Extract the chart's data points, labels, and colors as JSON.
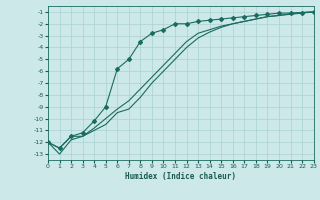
{
  "xlabel": "Humidex (Indice chaleur)",
  "xlim": [
    0,
    23
  ],
  "ylim": [
    -13.5,
    -0.5
  ],
  "bg_color": "#cce8e8",
  "grid_color": "#aad0d0",
  "line_color": "#1a6b60",
  "line1_x": [
    0,
    1,
    2,
    3,
    4,
    5,
    6,
    7,
    8,
    9,
    10,
    11,
    12,
    13,
    14,
    15,
    16,
    17,
    18,
    19,
    20,
    21,
    22,
    23
  ],
  "line1_y": [
    -12,
    -12.5,
    -11.5,
    -11.2,
    -10.2,
    -9.0,
    -5.8,
    -5.0,
    -3.5,
    -2.8,
    -2.5,
    -2.0,
    -2.0,
    -1.8,
    -1.7,
    -1.6,
    -1.5,
    -1.4,
    -1.3,
    -1.2,
    -1.1,
    -1.1,
    -1.05,
    -1.0
  ],
  "line2_x": [
    0,
    1,
    2,
    3,
    4,
    5,
    6,
    7,
    8,
    9,
    10,
    11,
    12,
    13,
    14,
    15,
    16,
    17,
    18,
    19,
    20,
    21,
    22,
    23
  ],
  "line2_y": [
    -12,
    -12.5,
    -11.5,
    -11.5,
    -10.8,
    -10.0,
    -9.2,
    -8.5,
    -7.5,
    -6.5,
    -5.5,
    -4.5,
    -3.5,
    -2.8,
    -2.5,
    -2.2,
    -2.0,
    -1.8,
    -1.6,
    -1.4,
    -1.3,
    -1.2,
    -1.1,
    -1.0
  ],
  "line3_x": [
    0,
    1,
    2,
    3,
    4,
    5,
    6,
    7,
    8,
    9,
    10,
    11,
    12,
    13,
    14,
    15,
    16,
    17,
    18,
    19,
    20,
    21,
    22,
    23
  ],
  "line3_y": [
    -12,
    -13.0,
    -11.8,
    -11.5,
    -11.0,
    -10.5,
    -9.5,
    -9.2,
    -8.2,
    -7.0,
    -6.0,
    -5.0,
    -4.0,
    -3.2,
    -2.7,
    -2.3,
    -2.0,
    -1.8,
    -1.6,
    -1.4,
    -1.3,
    -1.15,
    -1.05,
    -1.0
  ],
  "yticks": [
    -13,
    -12,
    -11,
    -10,
    -9,
    -8,
    -7,
    -6,
    -5,
    -4,
    -3,
    -2,
    -1
  ],
  "xticks": [
    0,
    1,
    2,
    3,
    4,
    5,
    6,
    7,
    8,
    9,
    10,
    11,
    12,
    13,
    14,
    15,
    16,
    17,
    18,
    19,
    20,
    21,
    22,
    23
  ]
}
